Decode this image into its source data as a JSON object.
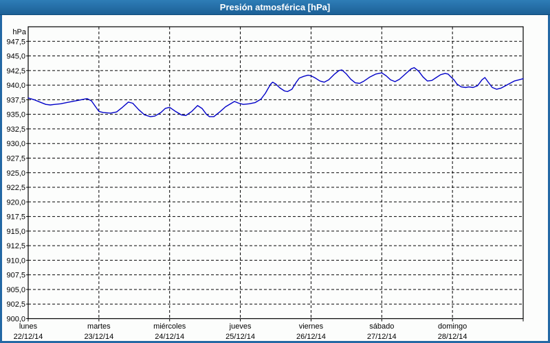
{
  "window": {
    "title": "Presión atmosférica [hPa]"
  },
  "colors": {
    "frame_border": "#2368A4",
    "titlebar_top": "#2E7DB7",
    "titlebar_bottom": "#1C6096",
    "title_text": "#FFFFFF",
    "plot_frame": "#000000",
    "grid": "#000000",
    "label_text": "#000000",
    "line": "#0000C8",
    "background": "#FCFDFC"
  },
  "chart_data": {
    "type": "line",
    "title": "Presión atmosférica [hPa]",
    "ylabel": "hPa",
    "unit_label": "hPa",
    "ylim": [
      900,
      950
    ],
    "y_tick_step": 2.5,
    "y_tick_labels": [
      "947,5",
      "945,0",
      "942,5",
      "940,0",
      "937,5",
      "935,0",
      "932,5",
      "930,0",
      "927,5",
      "925,0",
      "922,5",
      "920,0",
      "917,5",
      "915,0",
      "912,5",
      "910,0",
      "907,5",
      "905,0",
      "902,5",
      "900,0"
    ],
    "x_unit": "hours since 22/12/14 00:00",
    "xlim": [
      0,
      168
    ],
    "x_tick_step_hours": 24,
    "x_labels": [
      {
        "day": "lunes",
        "date": "22/12/14"
      },
      {
        "day": "martes",
        "date": "23/12/14"
      },
      {
        "day": "miércoles",
        "date": "24/12/14"
      },
      {
        "day": "jueves",
        "date": "25/12/14"
      },
      {
        "day": "viernes",
        "date": "26/12/14"
      },
      {
        "day": "sábado",
        "date": "27/12/14"
      },
      {
        "day": "domingo",
        "date": "28/12/14"
      }
    ],
    "grid": "dashed",
    "legend": "none",
    "line_color": "#0000C8",
    "points": [
      [
        0,
        937.8
      ],
      [
        2,
        937.5
      ],
      [
        4,
        937.1
      ],
      [
        6,
        936.7
      ],
      [
        7.5,
        936.6
      ],
      [
        9,
        936.7
      ],
      [
        11,
        936.8
      ],
      [
        13,
        937.0
      ],
      [
        16,
        937.3
      ],
      [
        18,
        937.5
      ],
      [
        20,
        937.7
      ],
      [
        21.5,
        937.3
      ],
      [
        23,
        936.2
      ],
      [
        24,
        935.5
      ],
      [
        25.5,
        935.3
      ],
      [
        28,
        935.2
      ],
      [
        30,
        935.4
      ],
      [
        32,
        936.2
      ],
      [
        34,
        937.1
      ],
      [
        35.5,
        936.9
      ],
      [
        37.5,
        935.8
      ],
      [
        39.5,
        934.9
      ],
      [
        41.5,
        934.6
      ],
      [
        43,
        934.7
      ],
      [
        45,
        935.3
      ],
      [
        46.5,
        936.0
      ],
      [
        48,
        936.2
      ],
      [
        50,
        935.5
      ],
      [
        52,
        934.9
      ],
      [
        53.5,
        934.8
      ],
      [
        55.5,
        935.5
      ],
      [
        57.5,
        936.5
      ],
      [
        59,
        936.0
      ],
      [
        60.5,
        935.0
      ],
      [
        61.5,
        934.6
      ],
      [
        63,
        934.6
      ],
      [
        65,
        935.4
      ],
      [
        67,
        936.3
      ],
      [
        69,
        936.9
      ],
      [
        70,
        937.2
      ],
      [
        71.5,
        936.9
      ],
      [
        73,
        936.7
      ],
      [
        75,
        936.8
      ],
      [
        77,
        937.0
      ],
      [
        79,
        937.6
      ],
      [
        80.5,
        938.6
      ],
      [
        81.5,
        939.5
      ],
      [
        82.5,
        940.3
      ],
      [
        83,
        940.5
      ],
      [
        84,
        940.2
      ],
      [
        85.5,
        939.5
      ],
      [
        87,
        939.0
      ],
      [
        88,
        938.9
      ],
      [
        89.5,
        939.3
      ],
      [
        91,
        940.5
      ],
      [
        92,
        941.2
      ],
      [
        93.5,
        941.5
      ],
      [
        95,
        941.7
      ],
      [
        96,
        941.6
      ],
      [
        97.5,
        941.2
      ],
      [
        99,
        940.7
      ],
      [
        100.5,
        940.5
      ],
      [
        102,
        940.9
      ],
      [
        104,
        941.9
      ],
      [
        105.5,
        942.5
      ],
      [
        106.5,
        942.6
      ],
      [
        108,
        941.9
      ],
      [
        109.5,
        941.0
      ],
      [
        111,
        940.4
      ],
      [
        112.5,
        940.3
      ],
      [
        114,
        940.7
      ],
      [
        116,
        941.4
      ],
      [
        118,
        941.9
      ],
      [
        120,
        942.1
      ],
      [
        121.5,
        941.6
      ],
      [
        123,
        940.9
      ],
      [
        124.5,
        940.6
      ],
      [
        126,
        941.0
      ],
      [
        128,
        941.9
      ],
      [
        130,
        942.8
      ],
      [
        131,
        943.0
      ],
      [
        132.5,
        942.4
      ],
      [
        134,
        941.4
      ],
      [
        135.5,
        940.7
      ],
      [
        137,
        940.8
      ],
      [
        138.5,
        941.3
      ],
      [
        140,
        941.8
      ],
      [
        141.5,
        942.0
      ],
      [
        142.5,
        941.9
      ],
      [
        143.5,
        941.4
      ],
      [
        144.5,
        940.9
      ],
      [
        145.5,
        940.2
      ],
      [
        147,
        939.7
      ],
      [
        148.5,
        939.6
      ],
      [
        149.5,
        939.7
      ],
      [
        151,
        939.6
      ],
      [
        152.5,
        939.9
      ],
      [
        154,
        940.9
      ],
      [
        155,
        941.3
      ],
      [
        156,
        940.6
      ],
      [
        157.5,
        939.6
      ],
      [
        159,
        939.3
      ],
      [
        160.5,
        939.5
      ],
      [
        162,
        939.9
      ],
      [
        163.5,
        940.3
      ],
      [
        165,
        940.7
      ],
      [
        166.5,
        940.9
      ],
      [
        168,
        941.1
      ]
    ]
  }
}
